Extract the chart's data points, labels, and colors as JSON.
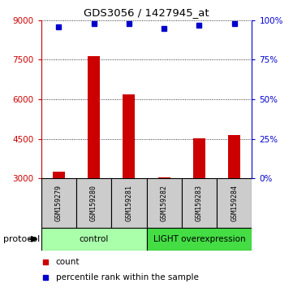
{
  "title": "GDS3056 / 1427945_at",
  "samples": [
    "GSM159279",
    "GSM159280",
    "GSM159281",
    "GSM159282",
    "GSM159283",
    "GSM159284"
  ],
  "counts": [
    3250,
    7650,
    6200,
    3050,
    4520,
    4650
  ],
  "percentile_ranks": [
    96,
    98,
    98,
    95,
    97,
    98
  ],
  "group_labels": [
    "control",
    "LIGHT overexpression"
  ],
  "control_color": "#aaffaa",
  "light_color": "#44dd44",
  "bar_color": "#cc0000",
  "dot_color": "#0000cc",
  "ylim_left": [
    3000,
    9000
  ],
  "ylim_right": [
    0,
    100
  ],
  "yticks_left": [
    3000,
    4500,
    6000,
    7500,
    9000
  ],
  "yticks_right": [
    0,
    25,
    50,
    75,
    100
  ],
  "left_tick_color": "#cc0000",
  "right_tick_color": "#0000cc",
  "label_box_color": "#cccccc",
  "protocol_label": "protocol",
  "legend_count_label": "count",
  "legend_percentile_label": "percentile rank within the sample"
}
